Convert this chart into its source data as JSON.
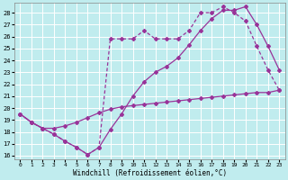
{
  "xlabel": "Windchill (Refroidissement éolien,°C)",
  "bg_color": "#c0ecee",
  "grid_color": "#ffffff",
  "line_color": "#993399",
  "ylim_min": 15.7,
  "ylim_max": 28.8,
  "xlim_min": -0.5,
  "xlim_max": 23.5,
  "yticks": [
    16,
    17,
    18,
    19,
    20,
    21,
    22,
    23,
    24,
    25,
    26,
    27,
    28
  ],
  "xticks": [
    0,
    1,
    2,
    3,
    4,
    5,
    6,
    7,
    8,
    9,
    10,
    11,
    12,
    13,
    14,
    15,
    16,
    17,
    18,
    19,
    20,
    21,
    22,
    23
  ],
  "line1_x": [
    0,
    1,
    2,
    3,
    4,
    5,
    6,
    7,
    8,
    9,
    10,
    11,
    12,
    13,
    14,
    15,
    16,
    17,
    18,
    19,
    20,
    21,
    22,
    23
  ],
  "line1_y": [
    19.5,
    18.8,
    18.3,
    18.3,
    18.5,
    18.8,
    19.2,
    19.6,
    19.9,
    20.1,
    20.2,
    20.3,
    20.4,
    20.5,
    20.6,
    20.7,
    20.8,
    20.9,
    21.0,
    21.1,
    21.2,
    21.3,
    21.3,
    21.5
  ],
  "line2_x": [
    0,
    1,
    2,
    3,
    4,
    5,
    6,
    7,
    8,
    9,
    10,
    11,
    12,
    13,
    14,
    15,
    16,
    17,
    18,
    19,
    20,
    21,
    22,
    23
  ],
  "line2_y": [
    19.5,
    18.8,
    18.3,
    17.8,
    17.2,
    16.7,
    16.1,
    16.7,
    25.8,
    25.8,
    25.8,
    26.5,
    25.8,
    25.8,
    25.8,
    26.5,
    28.0,
    28.0,
    28.5,
    28.0,
    27.3,
    25.2,
    23.2,
    21.5
  ],
  "line3_x": [
    0,
    1,
    2,
    3,
    4,
    5,
    6,
    7,
    8,
    9,
    10,
    11,
    12,
    13,
    14,
    15,
    16,
    17,
    18,
    19,
    20,
    21,
    22,
    23
  ],
  "line3_y": [
    19.5,
    18.8,
    18.3,
    17.8,
    17.2,
    16.7,
    16.1,
    16.7,
    18.2,
    19.5,
    21.0,
    22.2,
    23.0,
    23.5,
    24.2,
    25.3,
    26.5,
    27.5,
    28.2,
    28.2,
    28.5,
    27.0,
    25.2,
    23.2
  ]
}
